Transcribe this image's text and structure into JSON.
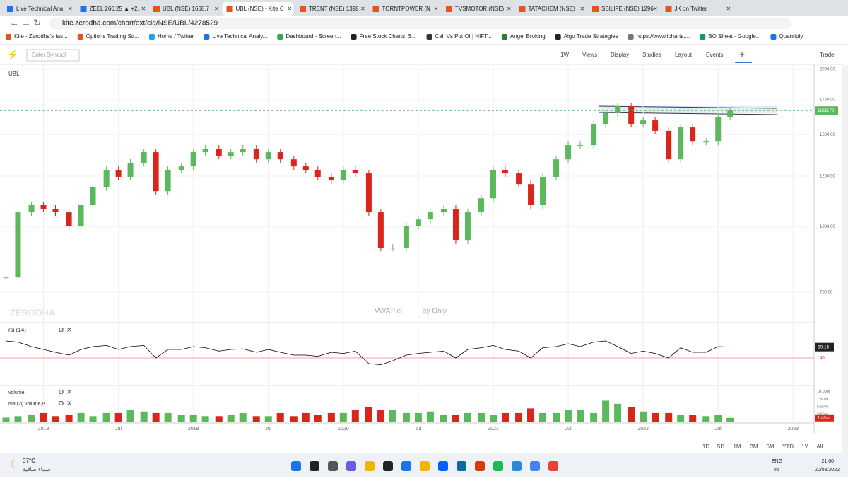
{
  "browser": {
    "tabs": [
      "Live Technical Ana",
      "ZEEL 260.25 ▲ +2.",
      "UBL (NSE) 1668.7",
      "UBL (NSE) - Kite C",
      "TRENT (NSE) 1398",
      "TORNTPOWER (N",
      "TVSMOTOR (NSE)",
      "TATACHEM (NSE)",
      "SBILIFE (NSE) 1296",
      "JK on Twitter"
    ],
    "url": "kite.zerodha.com/chart/ext/ciq/NSE/UBL/4278529",
    "bookmarks": [
      "Kite - Zerodha's fas...",
      "Options Trading Str...",
      "Home / Twitter",
      "Live Technical Analy...",
      "Dashboard - Screen...",
      "Free Stock Charts, S...",
      "Call Vs Put OI | NIFT...",
      "Angel Broking",
      "Algo Trade Strategies",
      "https://www.icharts....",
      "BO Sheet - Google...",
      "Quantiply"
    ]
  },
  "toolbar": {
    "symbol_placeholder": "Enter Symbol",
    "items": [
      "1W",
      "Views",
      "Display",
      "Studies",
      "Layout",
      "Events"
    ],
    "trade": "Trade"
  },
  "chart_data": {
    "type": "candlestick",
    "title": "UBL",
    "watermark": "ZERODHA",
    "notice": [
      "VWAP is",
      "ay Only"
    ],
    "log_scale": true,
    "grid": true,
    "up_color": "#5cb85c",
    "down_color": "#d9261c",
    "x": [
      2017.75,
      2017.83,
      2017.92,
      2018.0,
      2018.08,
      2018.17,
      2018.25,
      2018.33,
      2018.42,
      2018.5,
      2018.58,
      2018.67,
      2018.75,
      2018.83,
      2018.92,
      2019.0,
      2019.08,
      2019.17,
      2019.25,
      2019.33,
      2019.42,
      2019.5,
      2019.58,
      2019.67,
      2019.75,
      2019.83,
      2019.92,
      2020.0,
      2020.08,
      2020.17,
      2020.25,
      2020.33,
      2020.42,
      2020.5,
      2020.58,
      2020.67,
      2020.75,
      2020.83,
      2020.92,
      2021.0,
      2021.08,
      2021.17,
      2021.25,
      2021.33,
      2021.42,
      2021.5,
      2021.58,
      2021.67,
      2021.75,
      2021.83,
      2021.92,
      2022.0,
      2022.08,
      2022.17,
      2022.25,
      2022.33,
      2022.42,
      2022.5,
      2022.58
    ],
    "closes": [
      800,
      1066,
      1100,
      1083,
      1066,
      1002,
      1100,
      1190,
      1285,
      1246,
      1326,
      1389,
      1170,
      1285,
      1305,
      1389,
      1411,
      1368,
      1389,
      1411,
      1346,
      1389,
      1346,
      1305,
      1285,
      1246,
      1227,
      1285,
      1265,
      1066,
      912,
      912,
      1002,
      1033,
      1066,
      1083,
      941,
      1066,
      1134,
      1285,
      1265,
      1207,
      1100,
      1246,
      1346,
      1433,
      1433,
      1573,
      1649,
      1701,
      1573,
      1598,
      1526,
      1346,
      1549,
      1455,
      1455,
      1623,
      1668.7
    ],
    "xlim": [
      2017.71,
      2023.14
    ],
    "xticks": [
      2018,
      {
        "value": 2018.5,
        "label": "Jul"
      },
      2019,
      {
        "value": 2019.5,
        "label": "Jul"
      },
      2020,
      {
        "value": 2020.5,
        "label": "Jul"
      },
      2021,
      {
        "value": 2021.5,
        "label": "Jul"
      },
      2022,
      {
        "value": 2022.5,
        "label": "Jul"
      },
      2023
    ],
    "ylim": [
      658,
      2038
    ],
    "yticks": [
      {
        "value": 2000,
        "label": "2000.00"
      },
      {
        "value": 1750,
        "label": "1750.00"
      },
      {
        "value": 1500,
        "label": "1500.00"
      },
      {
        "value": 1250,
        "label": "1250.00"
      },
      {
        "value": 1000,
        "label": "1000.00"
      },
      {
        "value": 750,
        "label": "750.00"
      }
    ],
    "last": {
      "value": 1668.7,
      "label": "1668.70"
    },
    "rsi": {
      "label": "rsi (14)",
      "color": "#000000",
      "ylim": [
        0,
        100
      ],
      "levels": [
        40
      ],
      "values": [
        70,
        68,
        60,
        55,
        50,
        45,
        55,
        60,
        62,
        55,
        60,
        62,
        40,
        55,
        55,
        60,
        58,
        52,
        55,
        56,
        50,
        55,
        50,
        45,
        45,
        43,
        50,
        48,
        52,
        30,
        28,
        35,
        45,
        48,
        50,
        52,
        40,
        55,
        58,
        62,
        55,
        52,
        40,
        58,
        60,
        65,
        60,
        68,
        70,
        60,
        48,
        52,
        48,
        40,
        58,
        50,
        50,
        60,
        59.15
      ]
    },
    "volume": {
      "labels": [
        "volume",
        "ma (2( Volume,e..."
      ],
      "ylim": [
        0,
        11.7
      ],
      "yticks": [
        {
          "value": 10,
          "label": "10.00m"
        },
        {
          "value": 7.5,
          "label": "7.50m"
        },
        {
          "value": 5,
          "label": "5.00m"
        },
        {
          "value": 2.5,
          "label": "2.50m"
        }
      ],
      "values": [
        1.5,
        2,
        2.5,
        3,
        2,
        2.5,
        3,
        2,
        3,
        3,
        4,
        3.5,
        3,
        3,
        2.5,
        2.5,
        2,
        2,
        2.5,
        3,
        2,
        2,
        3,
        2,
        3,
        2.5,
        3,
        3,
        4,
        5,
        4,
        4,
        3,
        3,
        3.5,
        2.5,
        2.5,
        3,
        3,
        2.5,
        3,
        3,
        4.5,
        3,
        3,
        4,
        4,
        3,
        7,
        6,
        5,
        3.5,
        3,
        3,
        2.5,
        2.5,
        2,
        2.5,
        1.43
      ],
      "last": {
        "value": 1.43,
        "label": "1.43m"
      }
    }
  },
  "ranges": [
    "1D",
    "5D",
    "1M",
    "3M",
    "6M",
    "YTD",
    "1Y",
    "All"
  ],
  "taskbar": {
    "temperature": "37°C",
    "weather": "سماء صافية",
    "language": [
      "ENG",
      "IN"
    ],
    "time": "21:00",
    "date": "20/08/2022"
  }
}
